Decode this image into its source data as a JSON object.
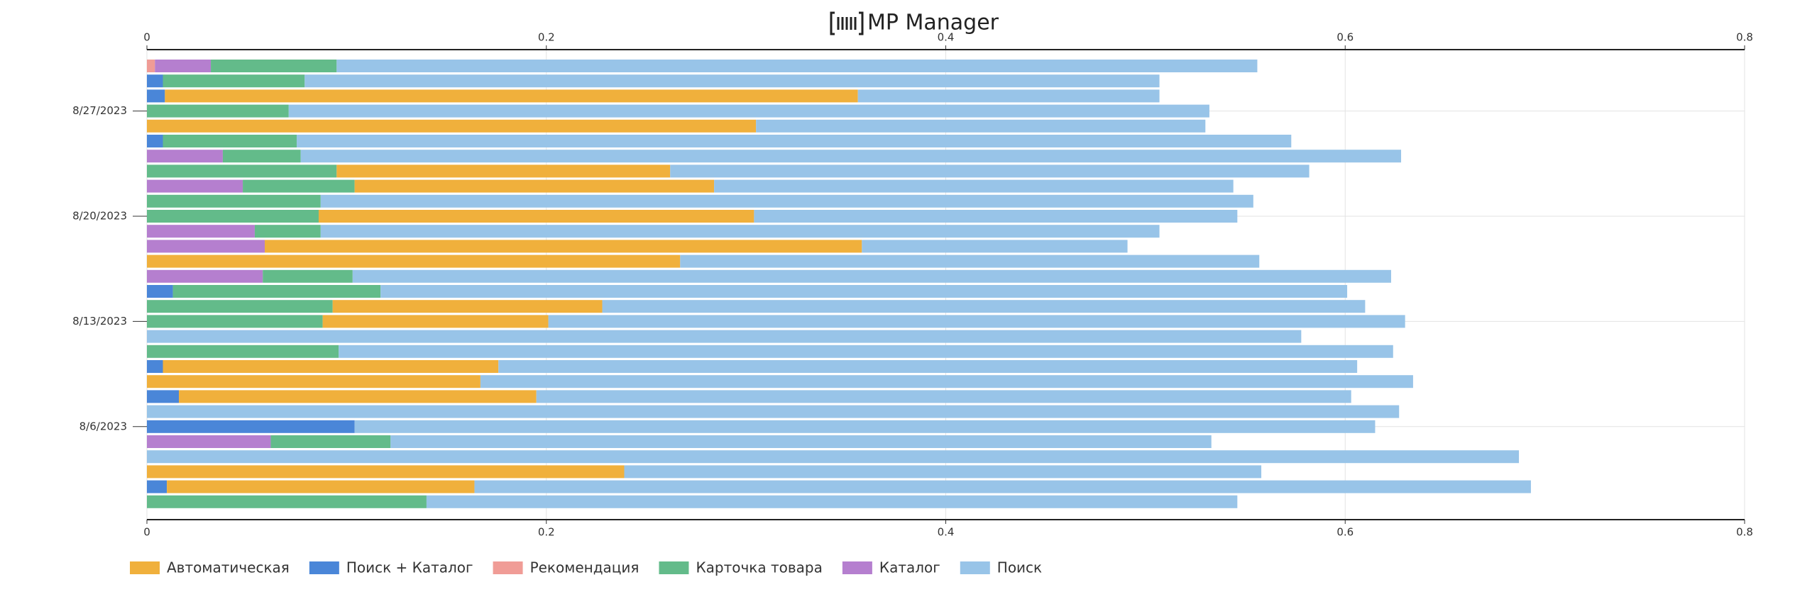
{
  "chart_data": {
    "type": "stacked-bar-horizontal",
    "title": "MP Manager",
    "categories": [
      null,
      null,
      null,
      "8/27/2023",
      null,
      null,
      null,
      null,
      null,
      null,
      "8/20/2023",
      null,
      null,
      null,
      null,
      null,
      null,
      "8/13/2023",
      null,
      null,
      null,
      null,
      null,
      null,
      "8/6/2023",
      null,
      null,
      null,
      null,
      null
    ],
    "series": [
      {
        "name": "Поиск + Каталог",
        "color": "#4a86d8",
        "values": [
          0,
          0.008,
          0.009,
          0,
          0,
          0.008,
          0,
          0,
          0,
          0,
          0,
          0,
          0,
          0,
          0,
          0.013,
          0,
          0,
          0,
          0,
          0.008,
          0,
          0.016,
          0,
          0.104,
          0,
          0,
          0,
          0.01,
          0
        ]
      },
      {
        "name": "Рекомендация",
        "color": "#f09c96",
        "values": [
          0.004,
          0,
          0,
          0,
          0,
          0,
          0,
          0,
          0,
          0,
          0,
          0,
          0,
          0,
          0,
          0,
          0,
          0,
          0,
          0,
          0,
          0,
          0,
          0,
          0,
          0,
          0,
          0,
          0,
          0
        ]
      },
      {
        "name": "Каталог",
        "color": "#b57fcf",
        "values": [
          0.028,
          0,
          0,
          0,
          0,
          0,
          0.038,
          0,
          0.048,
          0,
          0,
          0.054,
          0.059,
          0,
          0.058,
          0,
          0,
          0,
          0,
          0,
          0,
          0,
          0,
          0,
          0,
          0.062,
          0,
          0,
          0,
          0
        ]
      },
      {
        "name": "Карточка товара",
        "color": "#63bb8a",
        "values": [
          0.063,
          0.071,
          0,
          0.071,
          0,
          0.067,
          0.039,
          0.095,
          0.056,
          0.087,
          0.086,
          0.033,
          0,
          0,
          0.045,
          0.104,
          0.093,
          0.088,
          0,
          0.096,
          0,
          0,
          0,
          0,
          0,
          0.06,
          0,
          0,
          0,
          0.14
        ]
      },
      {
        "name": "Автоматическая",
        "color": "#f0b03c",
        "values": [
          0,
          0,
          0.347,
          0,
          0.305,
          0,
          0,
          0.167,
          0.18,
          0,
          0.218,
          0,
          0.299,
          0.267,
          0,
          0,
          0.135,
          0.113,
          0,
          0,
          0.168,
          0.167,
          0.179,
          0,
          0,
          0,
          0,
          0.239,
          0.154,
          0
        ]
      },
      {
        "name": "Поиск",
        "color": "#98c4e8",
        "values": [
          0.461,
          0.428,
          0.151,
          0.461,
          0.225,
          0.498,
          0.551,
          0.32,
          0.26,
          0.467,
          0.242,
          0.42,
          0.133,
          0.29,
          0.52,
          0.484,
          0.382,
          0.429,
          0.578,
          0.528,
          0.43,
          0.467,
          0.408,
          0.627,
          0.511,
          0.411,
          0.687,
          0.319,
          0.529,
          0.406
        ]
      }
    ],
    "legend_order": [
      "Автоматическая",
      "Поиск + Каталог",
      "Рекомендация",
      "Карточка товара",
      "Каталог",
      "Поиск"
    ],
    "xlim": [
      0,
      0.8
    ],
    "xticks": [
      0,
      0.2,
      0.4,
      0.6,
      0.8
    ],
    "grid": true
  }
}
